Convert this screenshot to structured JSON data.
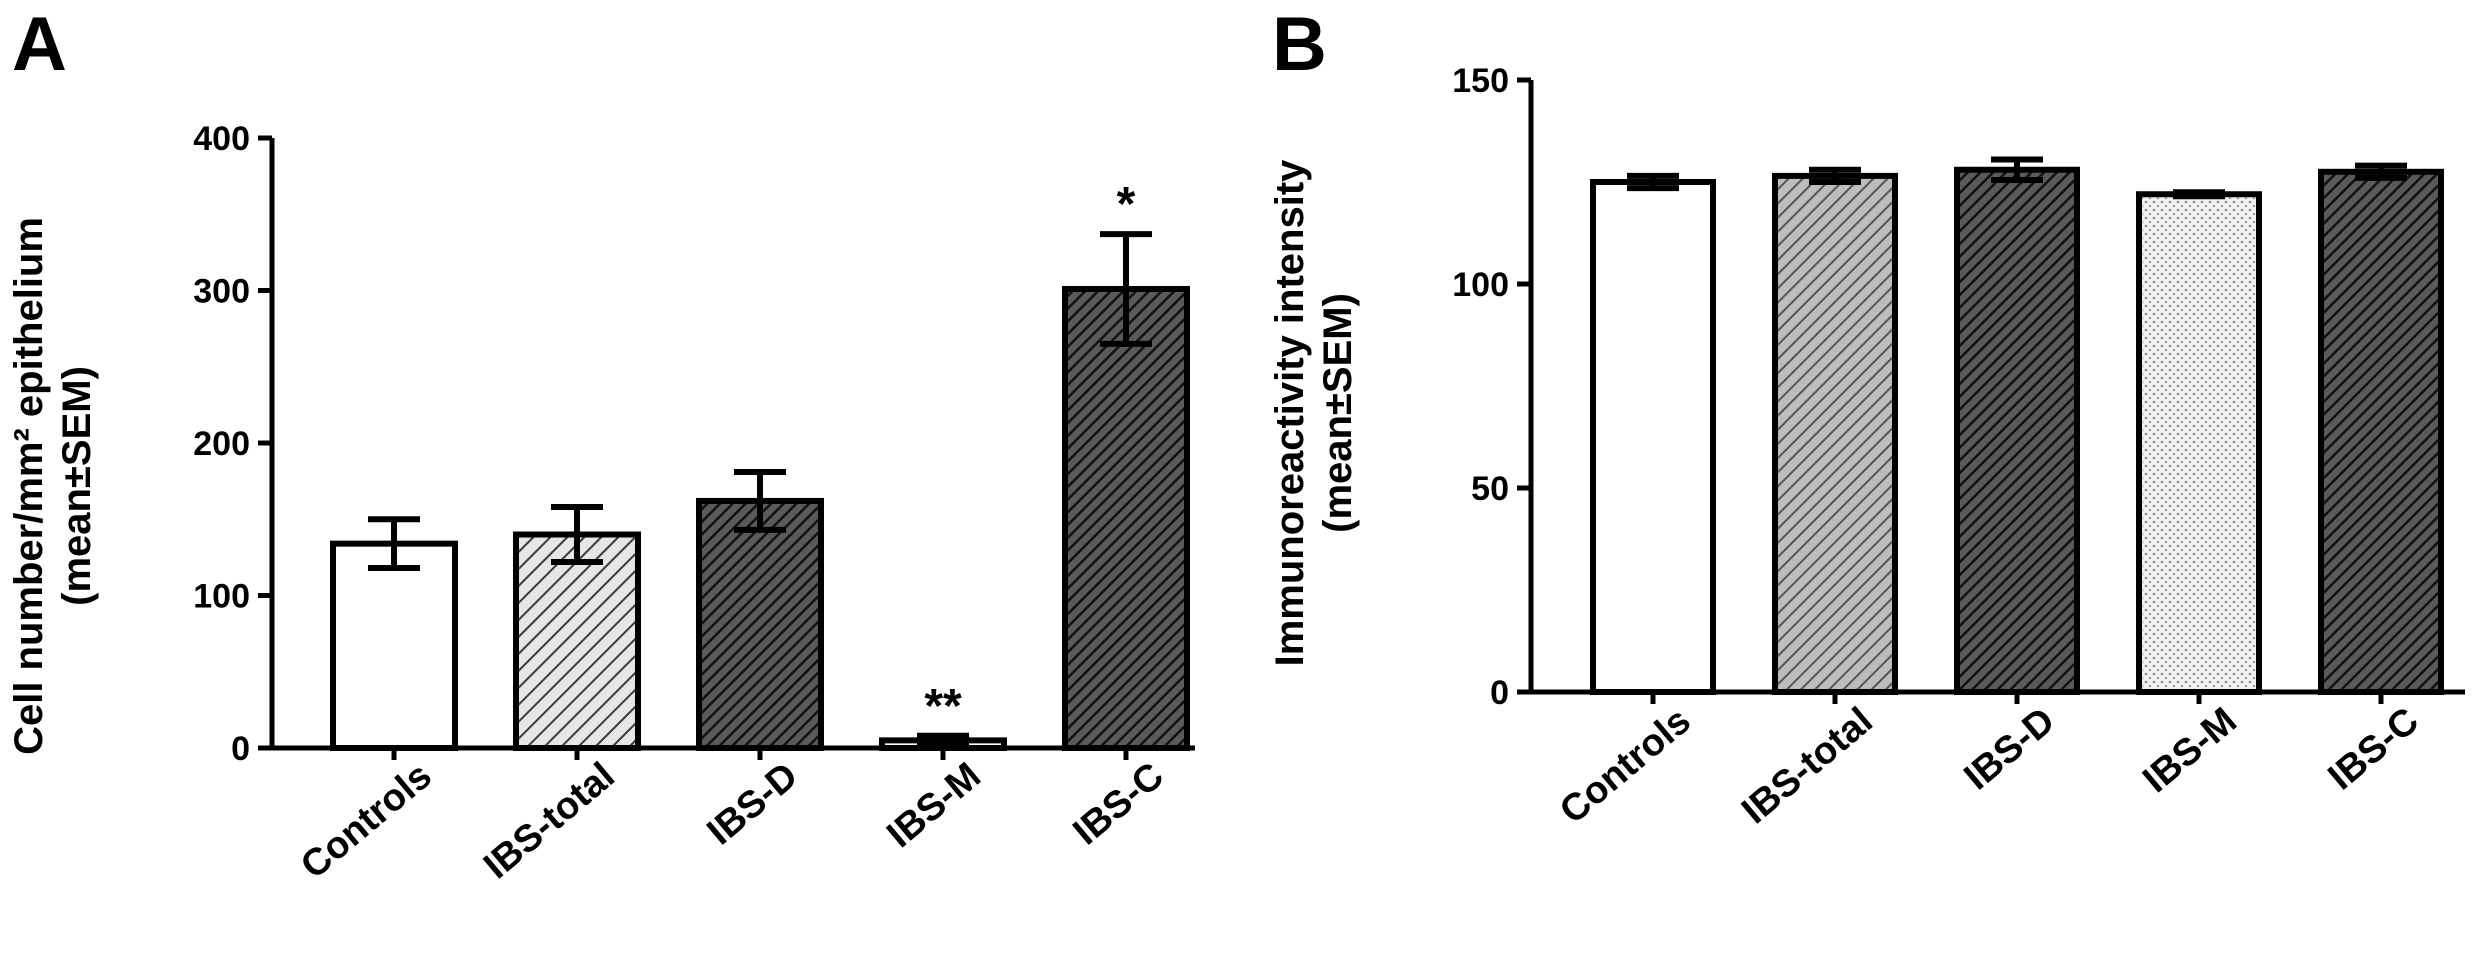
{
  "chart_data": [
    {
      "type": "bar",
      "panel_label": "A",
      "categories": [
        "Controls",
        "IBS-total",
        "IBS-D",
        "IBS-M",
        "IBS-C"
      ],
      "values": [
        134,
        140,
        162,
        5,
        301
      ],
      "errors": [
        16,
        18,
        19,
        3,
        36
      ],
      "annotations": [
        "",
        "",
        "",
        "**",
        "*"
      ],
      "ylabel_lines": [
        "Cell number/mm² epithelium",
        "(mean±SEM)"
      ],
      "xlabel": "",
      "ylim": [
        0,
        400
      ],
      "yticks": [
        0,
        100,
        200,
        300,
        400
      ],
      "grid": false,
      "fills": [
        "white",
        "hatch-light",
        "hatch-dark",
        "white",
        "hatch-dark"
      ]
    },
    {
      "type": "bar",
      "panel_label": "B",
      "categories": [
        "Controls",
        "IBS-total",
        "IBS-D",
        "IBS-M",
        "IBS-C"
      ],
      "values": [
        125,
        126.5,
        128,
        122,
        127.5
      ],
      "errors": [
        1.5,
        1.5,
        2.5,
        0.5,
        1.5
      ],
      "annotations": [
        "",
        "",
        "",
        "",
        ""
      ],
      "ylabel_lines": [
        "Immunoreactivity intensity",
        "(mean±SEM)"
      ],
      "xlabel": "",
      "ylim": [
        0,
        150
      ],
      "yticks": [
        0,
        50,
        100,
        150
      ],
      "grid": false,
      "fills": [
        "white",
        "hatch-gray",
        "hatch-dark",
        "dots-light",
        "hatch-dark"
      ]
    }
  ]
}
